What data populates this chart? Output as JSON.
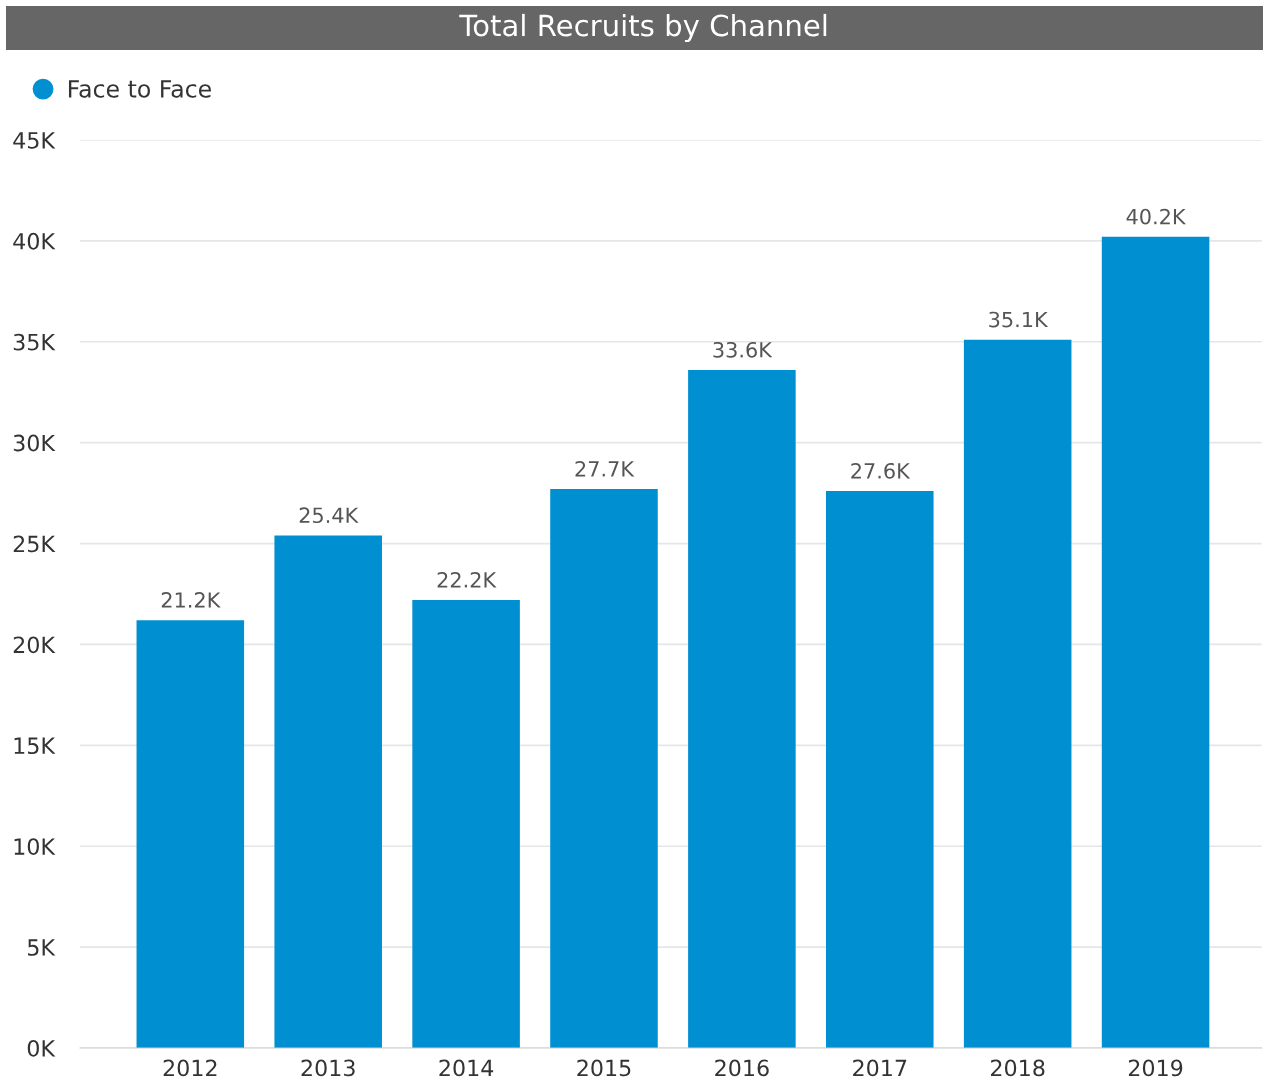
{
  "chart_data": {
    "type": "bar",
    "title": "Total Recruits by Channel",
    "categories": [
      "2012",
      "2013",
      "2014",
      "2015",
      "2016",
      "2017",
      "2018",
      "2019"
    ],
    "series": [
      {
        "name": "Face to Face",
        "color": "#0090d1",
        "values": [
          21200,
          25400,
          22200,
          27700,
          33600,
          27600,
          35100,
          40200
        ],
        "value_labels": [
          "21.2K",
          "25.4K",
          "22.2K",
          "27.7K",
          "33.6K",
          "27.6K",
          "35.1K",
          "40.2K"
        ]
      }
    ],
    "ylim": [
      0,
      45000
    ],
    "yticks": [
      {
        "value": 0,
        "label": "0K"
      },
      {
        "value": 5000,
        "label": "5K"
      },
      {
        "value": 10000,
        "label": "10K"
      },
      {
        "value": 15000,
        "label": "15K"
      },
      {
        "value": 20000,
        "label": "20K"
      },
      {
        "value": 25000,
        "label": "25K"
      },
      {
        "value": 30000,
        "label": "30K"
      },
      {
        "value": 35000,
        "label": "35K"
      },
      {
        "value": 40000,
        "label": "40K"
      },
      {
        "value": 45000,
        "label": "45K"
      }
    ],
    "grid": "y",
    "legend": "top left"
  }
}
